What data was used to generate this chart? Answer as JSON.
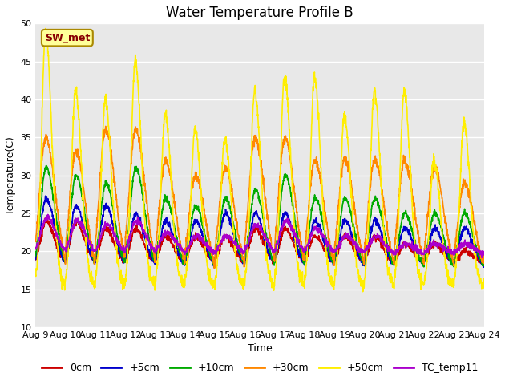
{
  "title": "Water Temperature Profile B",
  "xlabel": "Time",
  "ylabel": "Temperature(C)",
  "ylim": [
    10,
    50
  ],
  "xlim": [
    0,
    15
  ],
  "x_tick_labels": [
    "Aug 9",
    "Aug 10",
    "Aug 11",
    "Aug 12",
    "Aug 13",
    "Aug 14",
    "Aug 15",
    "Aug 16",
    "Aug 17",
    "Aug 18",
    "Aug 19",
    "Aug 20",
    "Aug 21",
    "Aug 22",
    "Aug 23",
    "Aug 24"
  ],
  "yticks": [
    10,
    15,
    20,
    25,
    30,
    35,
    40,
    45,
    50
  ],
  "series": [
    "0cm",
    "+5cm",
    "+10cm",
    "+30cm",
    "+50cm",
    "TC_temp11"
  ],
  "colors": [
    "#cc0000",
    "#0000cc",
    "#00aa00",
    "#ff8800",
    "#ffee00",
    "#aa00cc"
  ],
  "linewidths": [
    1.2,
    1.2,
    1.2,
    1.2,
    1.2,
    1.2
  ],
  "bg_color": "#e8e8e8",
  "plot_bg": "#e8e8e8",
  "fig_bg": "#ffffff",
  "sw_met_label": "SW_met",
  "sw_met_text_color": "#880000",
  "sw_met_bg": "#ffff99",
  "sw_met_edge": "#aa8800",
  "title_fontsize": 12,
  "axis_label_fontsize": 9,
  "tick_fontsize": 8,
  "legend_fontsize": 9
}
